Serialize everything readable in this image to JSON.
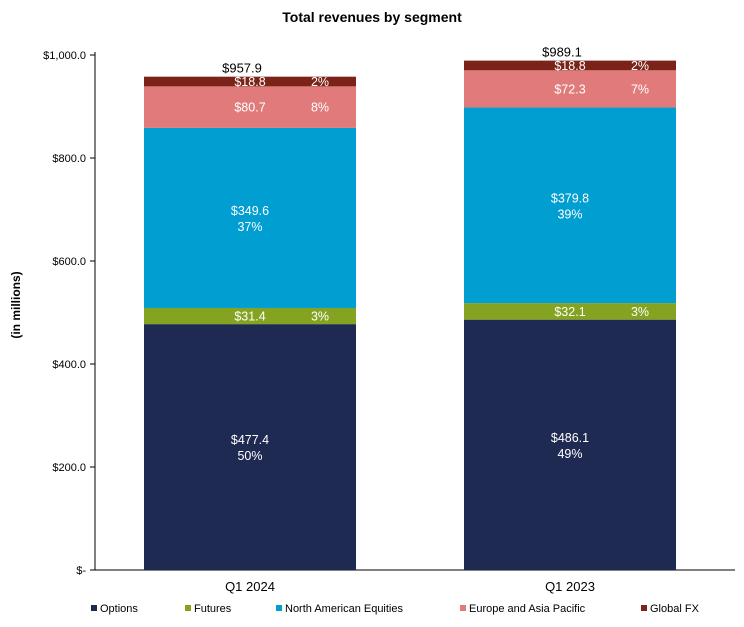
{
  "chart_data": {
    "type": "bar",
    "stacked": true,
    "title": "Total revenues by segment",
    "ylabel": "(in millions)",
    "xlabel": "",
    "ylim": [
      0,
      1000
    ],
    "grid": false,
    "legend": "bottom",
    "y_ticks": [
      {
        "value": 0,
        "label": "$-"
      },
      {
        "value": 200,
        "label": "$200.0"
      },
      {
        "value": 400,
        "label": "$400.0"
      },
      {
        "value": 600,
        "label": "$600.0"
      },
      {
        "value": 800,
        "label": "$800.0"
      },
      {
        "value": 1000,
        "label": "$1,000.0"
      }
    ],
    "categories": [
      "Q1 2024",
      "Q1 2023"
    ],
    "totals": [
      {
        "value": 957.9,
        "label": "$957.9"
      },
      {
        "value": 989.1,
        "label": "$989.1"
      }
    ],
    "series": [
      {
        "name": "Options",
        "color": "#1f2a52",
        "values": [
          477.4,
          486.1
        ],
        "value_labels": [
          "$477.4",
          "$486.1"
        ],
        "pct_labels": [
          "50%",
          "49%"
        ],
        "label_style": "stacked"
      },
      {
        "name": "Futures",
        "color": "#84a321",
        "values": [
          31.4,
          32.1
        ],
        "value_labels": [
          "$31.4",
          "$32.1"
        ],
        "pct_labels": [
          "3%",
          "3%"
        ],
        "label_style": "inline"
      },
      {
        "name": "North American Equities",
        "color": "#009ed1",
        "values": [
          349.6,
          379.8
        ],
        "value_labels": [
          "$349.6",
          "$379.8"
        ],
        "pct_labels": [
          "37%",
          "39%"
        ],
        "label_style": "stacked"
      },
      {
        "name": "Europe and Asia Pacific",
        "color": "#e17b7b",
        "values": [
          80.7,
          72.3
        ],
        "value_labels": [
          "$80.7",
          "$72.3"
        ],
        "pct_labels": [
          "8%",
          "7%"
        ],
        "label_style": "inline"
      },
      {
        "name": "Global FX",
        "color": "#7b2318",
        "values": [
          18.8,
          18.8
        ],
        "value_labels": [
          "$18.8",
          "$18.8"
        ],
        "pct_labels": [
          "2%",
          "2%"
        ],
        "label_style": "inline"
      }
    ]
  }
}
